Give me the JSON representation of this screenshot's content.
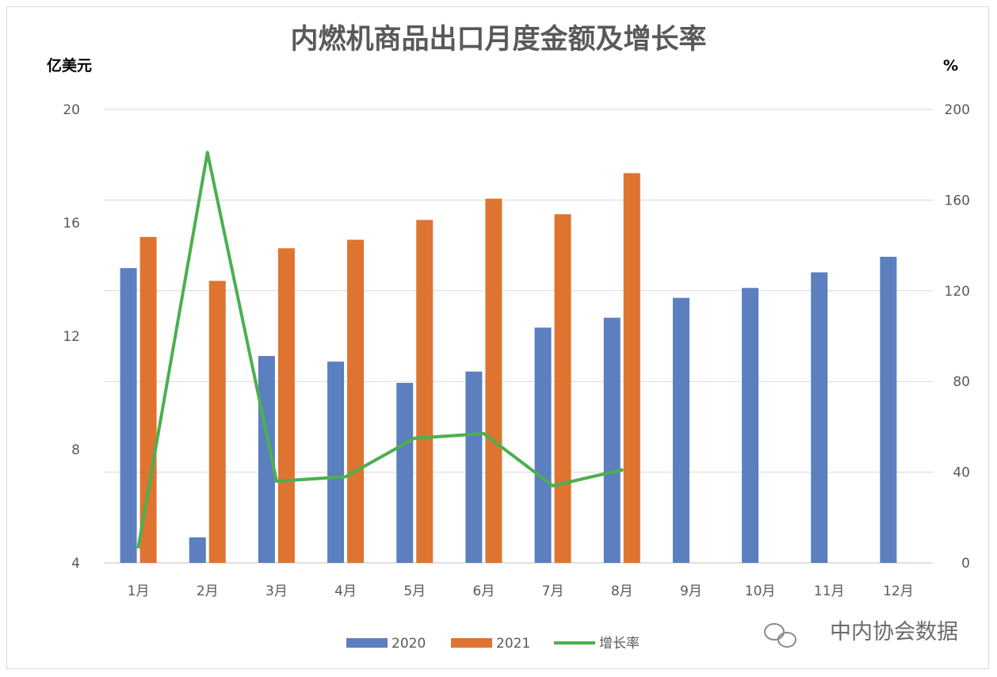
{
  "chart_data": {
    "type": "bar",
    "title": "内燃机商品出口月度金额及增长率",
    "y_left_unit": "亿美元",
    "y_right_unit": "%",
    "y_left_ticks": [
      "20",
      "16",
      "12",
      "8",
      "4"
    ],
    "y_right_ticks": [
      "200",
      "160",
      "120",
      "80",
      "40",
      "0"
    ],
    "ylim_left": [
      4,
      20
    ],
    "ylim_right": [
      0,
      200
    ],
    "grid": true,
    "legend_position": "bottom",
    "categories": [
      "1月",
      "2月",
      "3月",
      "4月",
      "5月",
      "6月",
      "7月",
      "8月",
      "9月",
      "10月",
      "11月",
      "12月"
    ],
    "series": [
      {
        "name": "2020",
        "type": "bar",
        "axis": "left",
        "color": "#5b7fbf",
        "values": [
          14.4,
          4.9,
          11.3,
          11.1,
          10.35,
          10.75,
          12.3,
          12.65,
          13.35,
          13.7,
          14.25,
          14.8
        ]
      },
      {
        "name": "2021",
        "type": "bar",
        "axis": "left",
        "color": "#de7430",
        "values": [
          15.5,
          13.95,
          15.1,
          15.4,
          16.1,
          16.85,
          16.3,
          17.75,
          null,
          null,
          null,
          null
        ]
      },
      {
        "name": "增长率",
        "type": "line",
        "axis": "right",
        "color": "#4caf50",
        "values": [
          7,
          181,
          36,
          38,
          55,
          57,
          34,
          41,
          null,
          null,
          null,
          null
        ]
      }
    ]
  },
  "watermark": {
    "text": "中内协会数据",
    "icon": "wechat-icon"
  }
}
